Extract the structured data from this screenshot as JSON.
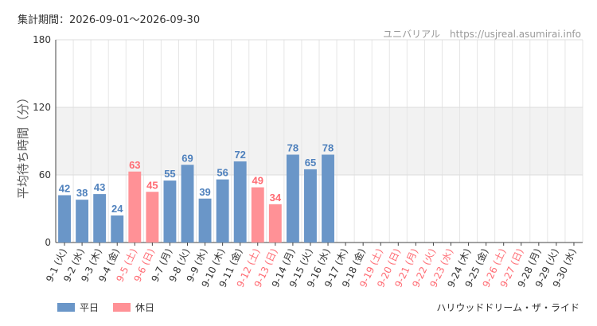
{
  "header": {
    "period": "集計期間：2026-09-01〜2026-09-30",
    "site": "ユニバリアル　https://usjreal.asumirai.info"
  },
  "footer": {
    "ride_name": "ハリウッドドリーム・ザ・ライド"
  },
  "colors": {
    "weekday": "#6a96c8",
    "holiday": "#ff9196",
    "weekday_text": "#4f81bd",
    "holiday_text": "#ff6b73",
    "band": "#f2f2f2"
  },
  "chart_data": {
    "type": "bar",
    "ylabel": "平均待ち時間（分）",
    "ylim": [
      0,
      180
    ],
    "yticks": [
      0,
      60,
      120,
      180
    ],
    "band": [
      60,
      120
    ],
    "categories": [
      "9-1 (火)",
      "9-2 (水)",
      "9-3 (木)",
      "9-4 (金)",
      "9-5 (土)",
      "9-6 (日)",
      "9-7 (月)",
      "9-8 (火)",
      "9-9 (水)",
      "9-10 (木)",
      "9-11 (金)",
      "9-12 (土)",
      "9-13 (日)",
      "9-14 (月)",
      "9-15 (火)",
      "9-16 (水)",
      "9-17 (木)",
      "9-18 (金)",
      "9-19 (土)",
      "9-20 (日)",
      "9-21 (月)",
      "9-22 (火)",
      "9-23 (水)",
      "9-24 (木)",
      "9-25 (金)",
      "9-26 (土)",
      "9-27 (日)",
      "9-28 (月)",
      "9-29 (火)",
      "9-30 (水)"
    ],
    "holiday": [
      false,
      false,
      false,
      false,
      true,
      true,
      false,
      false,
      false,
      false,
      false,
      true,
      true,
      false,
      false,
      false,
      false,
      false,
      true,
      true,
      true,
      true,
      true,
      false,
      false,
      true,
      true,
      false,
      false,
      false
    ],
    "values": [
      42,
      38,
      43,
      24,
      63,
      45,
      55,
      69,
      39,
      56,
      72,
      49,
      34,
      78,
      65,
      78,
      null,
      null,
      null,
      null,
      null,
      null,
      null,
      null,
      null,
      null,
      null,
      null,
      null,
      null
    ],
    "legend": [
      {
        "name": "平日",
        "type": "weekday"
      },
      {
        "name": "休日",
        "type": "holiday"
      }
    ]
  }
}
